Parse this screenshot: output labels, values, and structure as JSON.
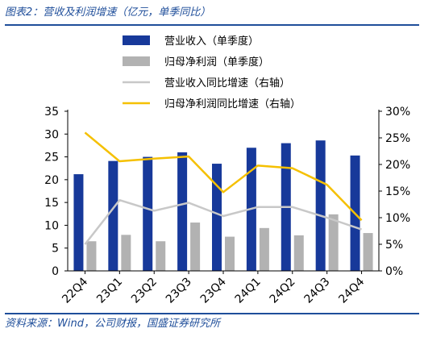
{
  "figure": {
    "title": "图表2：营收及利润增速（亿元，单季同比）",
    "source": "资料来源：Wind，公司财报，国盛证券研究所"
  },
  "chart_data": {
    "type": "bar",
    "categories": [
      "22Q4",
      "23Q1",
      "23Q2",
      "23Q3",
      "23Q4",
      "24Q1",
      "24Q2",
      "24Q3",
      "24Q4"
    ],
    "series": [
      {
        "name": "营业收入（单季度）",
        "type": "bar",
        "axis": "left",
        "color": "#17399a",
        "values": [
          21.2,
          24.1,
          25.0,
          26.0,
          23.5,
          27.0,
          28.0,
          28.6,
          25.3
        ]
      },
      {
        "name": "归母净利润（单季度）",
        "type": "bar",
        "axis": "left",
        "color": "#b2b2b2",
        "values": [
          6.5,
          7.9,
          6.5,
          10.6,
          7.5,
          9.4,
          7.8,
          12.4,
          8.3
        ]
      },
      {
        "name": "营业收入同比增速（右轴）",
        "type": "line",
        "axis": "right",
        "color": "#c8c8c8",
        "values": [
          0.05,
          0.133,
          0.113,
          0.128,
          0.103,
          0.12,
          0.12,
          0.1,
          0.078
        ]
      },
      {
        "name": "归母净利润同比增速（右轴）",
        "type": "line",
        "axis": "right",
        "color": "#f5c000",
        "values": [
          0.26,
          0.206,
          0.211,
          0.215,
          0.148,
          0.198,
          0.193,
          0.162,
          0.095
        ]
      }
    ],
    "y_left": {
      "lim": [
        0,
        35
      ],
      "ticks": [
        0,
        5,
        10,
        15,
        20,
        25,
        30,
        35
      ]
    },
    "y_right": {
      "lim": [
        0,
        0.3
      ],
      "ticks": [
        "0%",
        "5%",
        "10%",
        "15%",
        "20%",
        "25%",
        "30%"
      ]
    },
    "grid": false,
    "legend_position": "top-center"
  }
}
